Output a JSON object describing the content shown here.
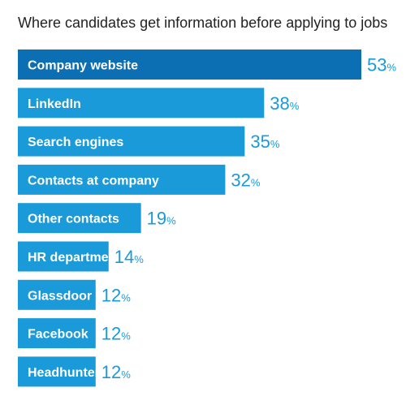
{
  "chart_data": {
    "type": "bar",
    "orientation": "horizontal",
    "title": "Where candidates get information before applying to jobs",
    "categories": [
      "Company website",
      "LinkedIn",
      "Search engines",
      "Contacts at company",
      "Other contacts",
      "HR department",
      "Glassdoor",
      "Facebook",
      "Headhunter"
    ],
    "values": [
      53,
      38,
      35,
      32,
      19,
      14,
      12,
      12,
      12
    ],
    "value_suffix": "%",
    "xlim": [
      0,
      53
    ],
    "grid": false,
    "legend": "none"
  },
  "colors": {
    "bar": "#1a9ad8",
    "bar_highlight": "#0c6fb3",
    "bar_label": "#ffffff",
    "value_label": "#1a9ad8",
    "title": "#222222"
  }
}
